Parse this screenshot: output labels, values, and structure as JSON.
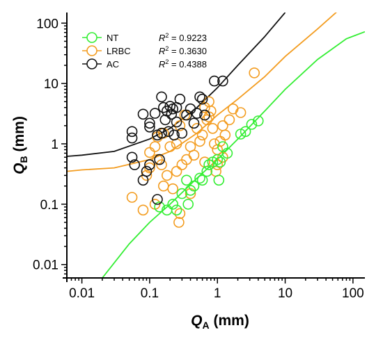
{
  "chart_data": {
    "type": "scatter",
    "title": "",
    "xlabel": {
      "main": "Q",
      "sub": "A",
      "unit": " (mm)"
    },
    "ylabel": {
      "main": "Q",
      "sub": "B",
      "unit": " (mm)"
    },
    "x_scale": "log",
    "y_scale": "log",
    "xlim": [
      0.006,
      150
    ],
    "ylim": [
      0.006,
      150
    ],
    "x_ticks": [
      0.01,
      0.1,
      1,
      10,
      100
    ],
    "x_tick_labels": [
      "0.01",
      "0.1",
      "1",
      "10",
      "100"
    ],
    "y_ticks": [
      0.01,
      0.1,
      1,
      10,
      100
    ],
    "y_tick_labels": [
      "0.01",
      "0.1",
      "1",
      "10",
      "100"
    ],
    "grid": false,
    "legend_position": "top-left",
    "series": [
      {
        "name": "NT",
        "r2_label": "R",
        "r2_value": " = 0.9223",
        "color": "#33ee33",
        "points": [
          [
            0.14,
            0.09
          ],
          [
            0.18,
            0.08
          ],
          [
            0.22,
            0.1
          ],
          [
            0.25,
            0.08
          ],
          [
            0.3,
            0.15
          ],
          [
            0.37,
            0.1
          ],
          [
            0.35,
            0.25
          ],
          [
            0.4,
            0.17
          ],
          [
            0.45,
            0.2
          ],
          [
            0.55,
            0.27
          ],
          [
            0.6,
            0.25
          ],
          [
            0.7,
            0.35
          ],
          [
            0.75,
            0.45
          ],
          [
            0.85,
            0.5
          ],
          [
            1.0,
            0.55
          ],
          [
            1.05,
            0.25
          ],
          [
            1.1,
            0.5
          ],
          [
            1.2,
            0.9
          ],
          [
            1.4,
            0.7
          ],
          [
            2.2,
            1.45
          ],
          [
            2.6,
            1.6
          ],
          [
            3.2,
            2.1
          ],
          [
            4.0,
            2.4
          ]
        ],
        "fit": [
          [
            0.02,
            0.006
          ],
          [
            0.05,
            0.022
          ],
          [
            0.1,
            0.05
          ],
          [
            0.2,
            0.1
          ],
          [
            0.5,
            0.27
          ],
          [
            1,
            0.55
          ],
          [
            2,
            1.2
          ],
          [
            5,
            3.5
          ],
          [
            10,
            8
          ],
          [
            30,
            25
          ],
          [
            80,
            55
          ],
          [
            150,
            72
          ]
        ]
      },
      {
        "name": "LRBC",
        "r2_label": "R",
        "r2_value": " = 0.3630",
        "color": "#f39c1f",
        "points": [
          [
            0.055,
            0.13
          ],
          [
            0.08,
            0.08
          ],
          [
            0.09,
            0.3
          ],
          [
            0.1,
            0.72
          ],
          [
            0.1,
            0.4
          ],
          [
            0.12,
            0.1
          ],
          [
            0.13,
            0.55
          ],
          [
            0.15,
            0.45
          ],
          [
            0.16,
            0.2
          ],
          [
            0.18,
            0.3
          ],
          [
            0.2,
            0.9
          ],
          [
            0.22,
            0.18
          ],
          [
            0.25,
            0.35
          ],
          [
            0.27,
            0.05
          ],
          [
            0.28,
            0.07
          ],
          [
            0.3,
            0.45
          ],
          [
            0.35,
            0.55
          ],
          [
            0.4,
            0.15
          ],
          [
            0.4,
            0.9
          ],
          [
            0.45,
            0.65
          ],
          [
            0.5,
            1.8
          ],
          [
            0.55,
            1.1
          ],
          [
            0.6,
            1.4
          ],
          [
            0.65,
            0.5
          ],
          [
            0.7,
            2.5
          ],
          [
            0.75,
            2.8
          ],
          [
            0.8,
            3.5
          ],
          [
            0.85,
            1.8
          ],
          [
            0.9,
            1.0
          ],
          [
            0.95,
            0.35
          ],
          [
            1.0,
            0.8
          ],
          [
            1.1,
            1.1
          ],
          [
            1.2,
            0.6
          ],
          [
            1.3,
            1.4
          ],
          [
            1.5,
            2.5
          ],
          [
            1.7,
            3.8
          ],
          [
            2.2,
            3.3
          ],
          [
            3.5,
            15
          ],
          [
            0.28,
            2.0
          ],
          [
            0.33,
            3.0
          ],
          [
            0.13,
            1.3
          ],
          [
            0.16,
            1.5
          ],
          [
            0.12,
            0.9
          ],
          [
            0.65,
            4.0
          ],
          [
            0.75,
            5.0
          ],
          [
            1.0,
            0.45
          ],
          [
            1.2,
            2.0
          ],
          [
            0.25,
            1.0
          ]
        ],
        "fit": [
          [
            0.006,
            0.35
          ],
          [
            0.01,
            0.37
          ],
          [
            0.03,
            0.4
          ],
          [
            0.1,
            0.55
          ],
          [
            0.2,
            0.75
          ],
          [
            0.5,
            1.5
          ],
          [
            1,
            3
          ],
          [
            2,
            5.5
          ],
          [
            5,
            13
          ],
          [
            10,
            28
          ],
          [
            30,
            80
          ],
          [
            60,
            160
          ]
        ]
      },
      {
        "name": "AC",
        "r2_label": "R",
        "r2_value": " = 0.4388",
        "color": "#111111",
        "points": [
          [
            0.055,
            1.6
          ],
          [
            0.055,
            1.25
          ],
          [
            0.055,
            0.6
          ],
          [
            0.06,
            0.45
          ],
          [
            0.08,
            0.25
          ],
          [
            0.08,
            3.1
          ],
          [
            0.09,
            0.35
          ],
          [
            0.1,
            2.2
          ],
          [
            0.1,
            1.9
          ],
          [
            0.1,
            0.45
          ],
          [
            0.12,
            3.2
          ],
          [
            0.13,
            1.4
          ],
          [
            0.13,
            0.12
          ],
          [
            0.14,
            0.55
          ],
          [
            0.15,
            1.5
          ],
          [
            0.15,
            6.0
          ],
          [
            0.16,
            4.0
          ],
          [
            0.17,
            2.5
          ],
          [
            0.18,
            3.5
          ],
          [
            0.19,
            1.6
          ],
          [
            0.2,
            4.2
          ],
          [
            0.21,
            3.1
          ],
          [
            0.22,
            3.8
          ],
          [
            0.23,
            1.4
          ],
          [
            0.25,
            2.3
          ],
          [
            0.25,
            4.0
          ],
          [
            0.28,
            5.5
          ],
          [
            0.3,
            1.5
          ],
          [
            0.35,
            3.0
          ],
          [
            0.4,
            3.8
          ],
          [
            0.45,
            2.2
          ],
          [
            0.5,
            3.2
          ],
          [
            0.55,
            6.0
          ],
          [
            0.6,
            5.5
          ],
          [
            0.65,
            3.0
          ],
          [
            0.9,
            11
          ],
          [
            1.2,
            11
          ]
        ],
        "fit": [
          [
            0.006,
            0.62
          ],
          [
            0.01,
            0.65
          ],
          [
            0.03,
            0.75
          ],
          [
            0.1,
            1.2
          ],
          [
            0.2,
            1.8
          ],
          [
            0.5,
            4
          ],
          [
            1,
            8.5
          ],
          [
            2,
            20
          ],
          [
            5,
            60
          ],
          [
            10,
            150
          ]
        ]
      }
    ]
  }
}
